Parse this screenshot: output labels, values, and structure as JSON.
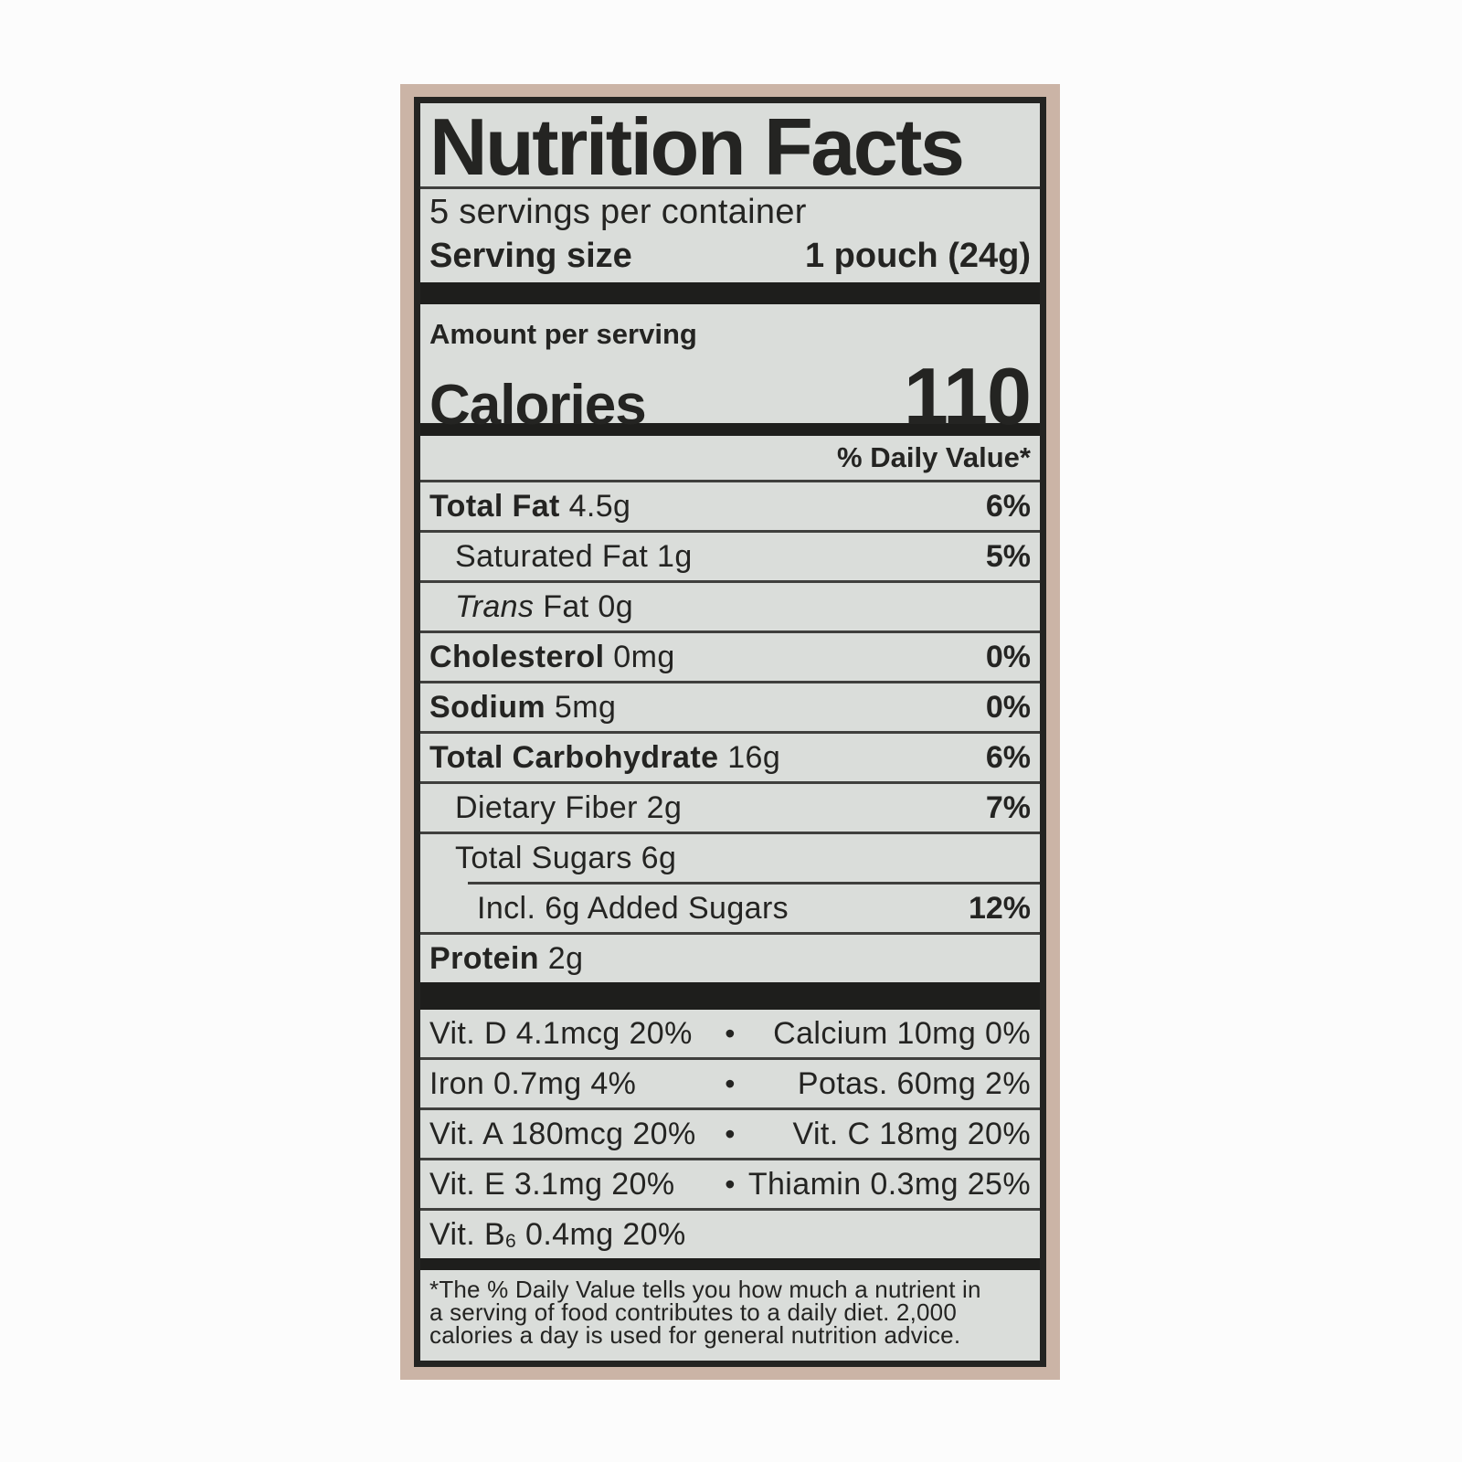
{
  "colors": {
    "page_background": "#fcfcfc",
    "package_frame": "#cbb4a6",
    "label_background": "#daddda",
    "ink": "#242422"
  },
  "label": {
    "title": "Nutrition Facts",
    "servings_per_container": "5 servings per container",
    "serving_size_label": "Serving size",
    "serving_size_value": "1 pouch (24g)",
    "amount_per_serving": "Amount per serving",
    "calories_label": "Calories",
    "calories_value": "110",
    "daily_value_header": "% Daily Value*",
    "nutrients": [
      {
        "name_parts": [
          {
            "t": "Total Fat",
            "b": true
          },
          {
            "t": " 4.5g"
          }
        ],
        "dv": "6%",
        "indent": 0,
        "divider_indent": 0
      },
      {
        "name_parts": [
          {
            "t": "Saturated Fat 1g"
          }
        ],
        "dv": "5%",
        "indent": 28,
        "divider_indent": 0
      },
      {
        "name_parts": [
          {
            "t": "Trans",
            "i": true
          },
          {
            "t": " Fat 0g"
          }
        ],
        "dv": "",
        "indent": 28,
        "divider_indent": 0
      },
      {
        "name_parts": [
          {
            "t": "Cholesterol",
            "b": true
          },
          {
            "t": " 0mg"
          }
        ],
        "dv": "0%",
        "indent": 0,
        "divider_indent": 0
      },
      {
        "name_parts": [
          {
            "t": "Sodium",
            "b": true
          },
          {
            "t": " 5mg"
          }
        ],
        "dv": "0%",
        "indent": 0,
        "divider_indent": 0
      },
      {
        "name_parts": [
          {
            "t": "Total Carbohydrate",
            "b": true
          },
          {
            "t": " 16g"
          }
        ],
        "dv": "6%",
        "indent": 0,
        "divider_indent": 0
      },
      {
        "name_parts": [
          {
            "t": "Dietary Fiber 2g"
          }
        ],
        "dv": "7%",
        "indent": 28,
        "divider_indent": 0
      },
      {
        "name_parts": [
          {
            "t": "Total Sugars 6g"
          }
        ],
        "dv": "",
        "indent": 28,
        "divider_indent": 0
      },
      {
        "name_parts": [
          {
            "t": "Incl. 6g Added Sugars"
          }
        ],
        "dv": "12%",
        "indent": 52,
        "divider_indent": 52
      },
      {
        "name_parts": [
          {
            "t": "Protein",
            "b": true
          },
          {
            "t": " 2g"
          }
        ],
        "dv": "",
        "indent": 0,
        "divider_indent": 0
      }
    ],
    "bullet_glyph": "•",
    "micronutrients": [
      {
        "left": [
          {
            "t": "Vit. D 4.1mcg 20%"
          }
        ],
        "right": [
          {
            "t": "Calcium 10mg 0%"
          }
        ],
        "bullet": true
      },
      {
        "left": [
          {
            "t": "Iron 0.7mg 4%"
          }
        ],
        "right": [
          {
            "t": "Potas. 60mg 2%"
          }
        ],
        "bullet": true
      },
      {
        "left": [
          {
            "t": "Vit. A 180mcg 20%"
          }
        ],
        "right": [
          {
            "t": "Vit. C 18mg 20%"
          }
        ],
        "bullet": true
      },
      {
        "left": [
          {
            "t": "Vit. E 3.1mg 20%"
          }
        ],
        "right": [
          {
            "t": "Thiamin 0.3mg 25%"
          }
        ],
        "bullet": true
      },
      {
        "left": [
          {
            "t": "Vit. B"
          },
          {
            "t": "6",
            "sub": true
          },
          {
            "t": " 0.4mg 20%"
          }
        ],
        "right": [],
        "bullet": false
      }
    ],
    "footnote_lines": [
      "*The % Daily Value tells you how much a nutrient in",
      "a serving of food contributes to a daily diet. 2,000",
      "calories a day is used for general nutrition advice."
    ]
  }
}
